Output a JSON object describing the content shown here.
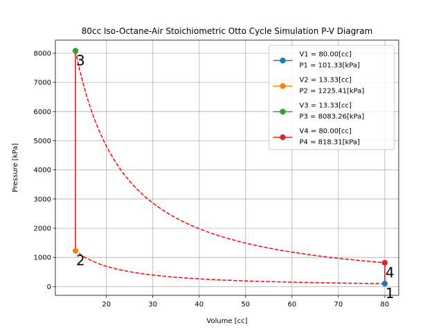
{
  "chart_data": {
    "type": "line",
    "title": "80cc Iso-Octane-Air Stoichiometric Otto Cycle Simulation P-V Diagram",
    "xlabel": "Volume [cc]",
    "ylabel": "Pressure [kPa]",
    "xlim": [
      9,
      83
    ],
    "ylim": [
      -300,
      8450
    ],
    "x_ticks": [
      20,
      30,
      40,
      50,
      60,
      70,
      80
    ],
    "y_ticks": [
      0,
      1000,
      2000,
      3000,
      4000,
      5000,
      6000,
      7000,
      8000
    ],
    "grid": true,
    "legend_position": "top-right",
    "points": [
      {
        "label": "1",
        "x": 80.0,
        "y": 101.33,
        "color": "#1f77b4",
        "legend": [
          "V1 = 80.00[cc]",
          "P1 = 101.33[kPa]"
        ]
      },
      {
        "label": "2",
        "x": 13.33,
        "y": 1225.41,
        "color": "#ff7f0e",
        "legend": [
          "V2 = 13.33[cc]",
          "P2 = 1225.41[kPa]"
        ]
      },
      {
        "label": "3",
        "x": 13.33,
        "y": 8083.26,
        "color": "#2ca02c",
        "legend": [
          "V3 = 13.33[cc]",
          "P3 = 8083.26[kPa]"
        ]
      },
      {
        "label": "4",
        "x": 80.0,
        "y": 818.31,
        "color": "#d62728",
        "legend": [
          "V4 = 80.00[cc]",
          "P4 = 818.31[kPa]"
        ]
      }
    ],
    "curves": [
      {
        "kind": "dashed",
        "color": "#ff0000",
        "from": 0,
        "to": 1
      },
      {
        "kind": "solid",
        "color": "#ff0000",
        "from": 1,
        "to": 2
      },
      {
        "kind": "dashed",
        "color": "#ff0000",
        "from": 2,
        "to": 3
      },
      {
        "kind": "solid",
        "color": "#ff0000",
        "from": 3,
        "to": 0
      }
    ]
  }
}
